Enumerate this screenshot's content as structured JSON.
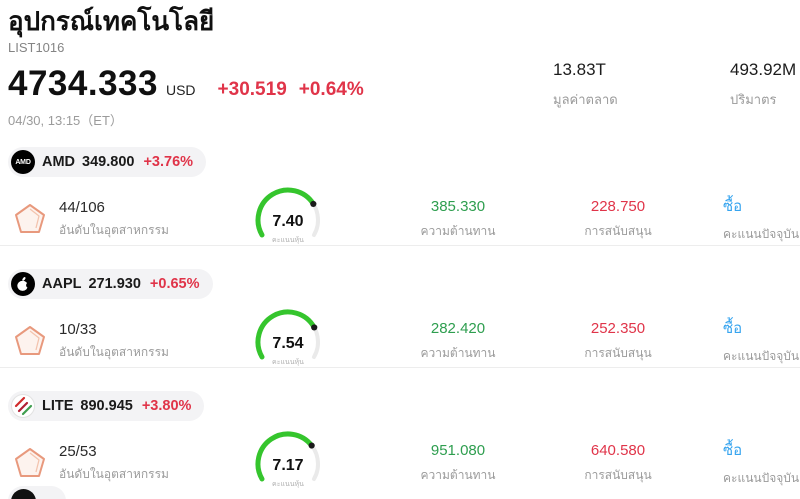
{
  "header": {
    "title": "อุปกรณ์เทคโนโลยี",
    "subtitle": "LIST1016",
    "price": "4734.333",
    "currency": "USD",
    "change": "+30.519",
    "change_pct": "+0.64%",
    "datetime": "04/30, 13:15（ET）",
    "stats": [
      {
        "value": "13.83T",
        "label": "มูลค่าตลาด"
      },
      {
        "value": "493.92M",
        "label": "ปริมาตร"
      }
    ]
  },
  "colors": {
    "up_red": "#e03449",
    "resistance_green": "#2e9e4f",
    "signal_blue": "#36a4ef",
    "gauge_green": "#35c52d",
    "label_gray": "#9b9b9b"
  },
  "rows": [
    {
      "symbol": "AMD",
      "logo": "amd-logo",
      "price": "349.800",
      "change_pct": "+3.76%",
      "rank": "44/106",
      "rank_label": "อันดับในอุตสาหกรรม",
      "score": 7.4,
      "score_display": "7.40",
      "gauge_label": "คะแนนหุ้น",
      "resistance": "385.330",
      "resistance_label": "ความต้านทาน",
      "support": "228.750",
      "support_label": "การสนับสนุน",
      "signal": "ซื้อ",
      "signal_label": "คะแนนปัจจุบัน"
    },
    {
      "symbol": "AAPL",
      "logo": "apple-logo",
      "price": "271.930",
      "change_pct": "+0.65%",
      "rank": "10/33",
      "rank_label": "อันดับในอุตสาหกรรม",
      "score": 7.54,
      "score_display": "7.54",
      "gauge_label": "คะแนนหุ้น",
      "resistance": "282.420",
      "resistance_label": "ความต้านทาน",
      "support": "252.350",
      "support_label": "การสนับสนุน",
      "signal": "ซื้อ",
      "signal_label": "คะแนนปัจจุบัน"
    },
    {
      "symbol": "LITE",
      "logo": "lite-logo",
      "price": "890.945",
      "change_pct": "+3.80%",
      "rank": "25/53",
      "rank_label": "อันดับในอุตสาหกรรม",
      "score": 7.17,
      "score_display": "7.17",
      "gauge_label": "คะแนนหุ้น",
      "resistance": "951.080",
      "resistance_label": "ความต้านทาน",
      "support": "640.580",
      "support_label": "การสนับสนุน",
      "signal": "ซื้อ",
      "signal_label": "คะแนนปัจจุบัน"
    }
  ]
}
